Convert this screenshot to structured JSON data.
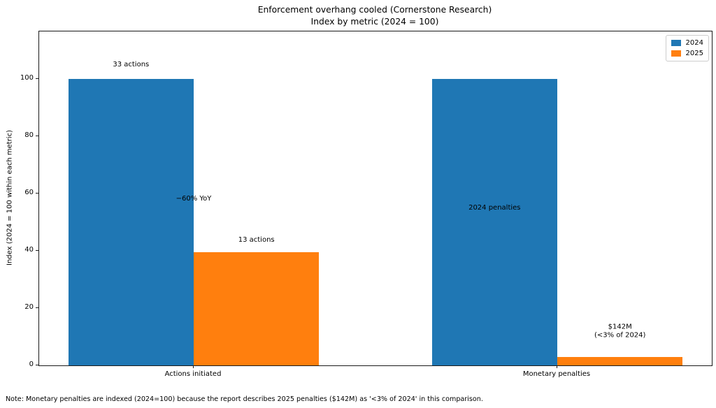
{
  "chart_data": {
    "type": "bar",
    "title": "Enforcement overhang cooled (Cornerstone Research)",
    "subtitle": "Index by metric (2024 = 100)",
    "categories": [
      "Actions initiated",
      "Monetary penalties"
    ],
    "series": [
      {
        "name": "2024",
        "color": "#1f77b4",
        "values": [
          100,
          100
        ]
      },
      {
        "name": "2025",
        "color": "#ff7f0e",
        "values": [
          39.4,
          2.85
        ]
      }
    ],
    "bar_width": 0.345,
    "group_offsets": [
      -0.1725,
      0.1725
    ],
    "ylabel": "Index (2024 = 100 within each metric)",
    "ylim": [
      0,
      116.6
    ],
    "yticks": [
      0,
      20,
      40,
      60,
      80,
      100
    ],
    "xlim": [
      -0.425,
      1.425
    ],
    "grid": false,
    "legend": {
      "position": "upper right"
    },
    "annotations": [
      {
        "lines": [
          "33 actions"
        ],
        "x": -0.1725,
        "y": 105.0
      },
      {
        "lines": [
          "−60% YoY"
        ],
        "x": 0.0,
        "y": 58.0
      },
      {
        "lines": [
          "13 actions"
        ],
        "x": 0.1725,
        "y": 43.7
      },
      {
        "lines": [
          "2024 penalties"
        ],
        "x": 0.8275,
        "y": 54.9
      },
      {
        "lines": [
          "$142M",
          "(<3% of 2024)"
        ],
        "x": 1.1725,
        "y": 11.8
      }
    ],
    "note": "Note: Monetary penalties are indexed (2024=100) because the report describes 2025 penalties ($142M) as '<3% of 2024' in this comparison."
  }
}
